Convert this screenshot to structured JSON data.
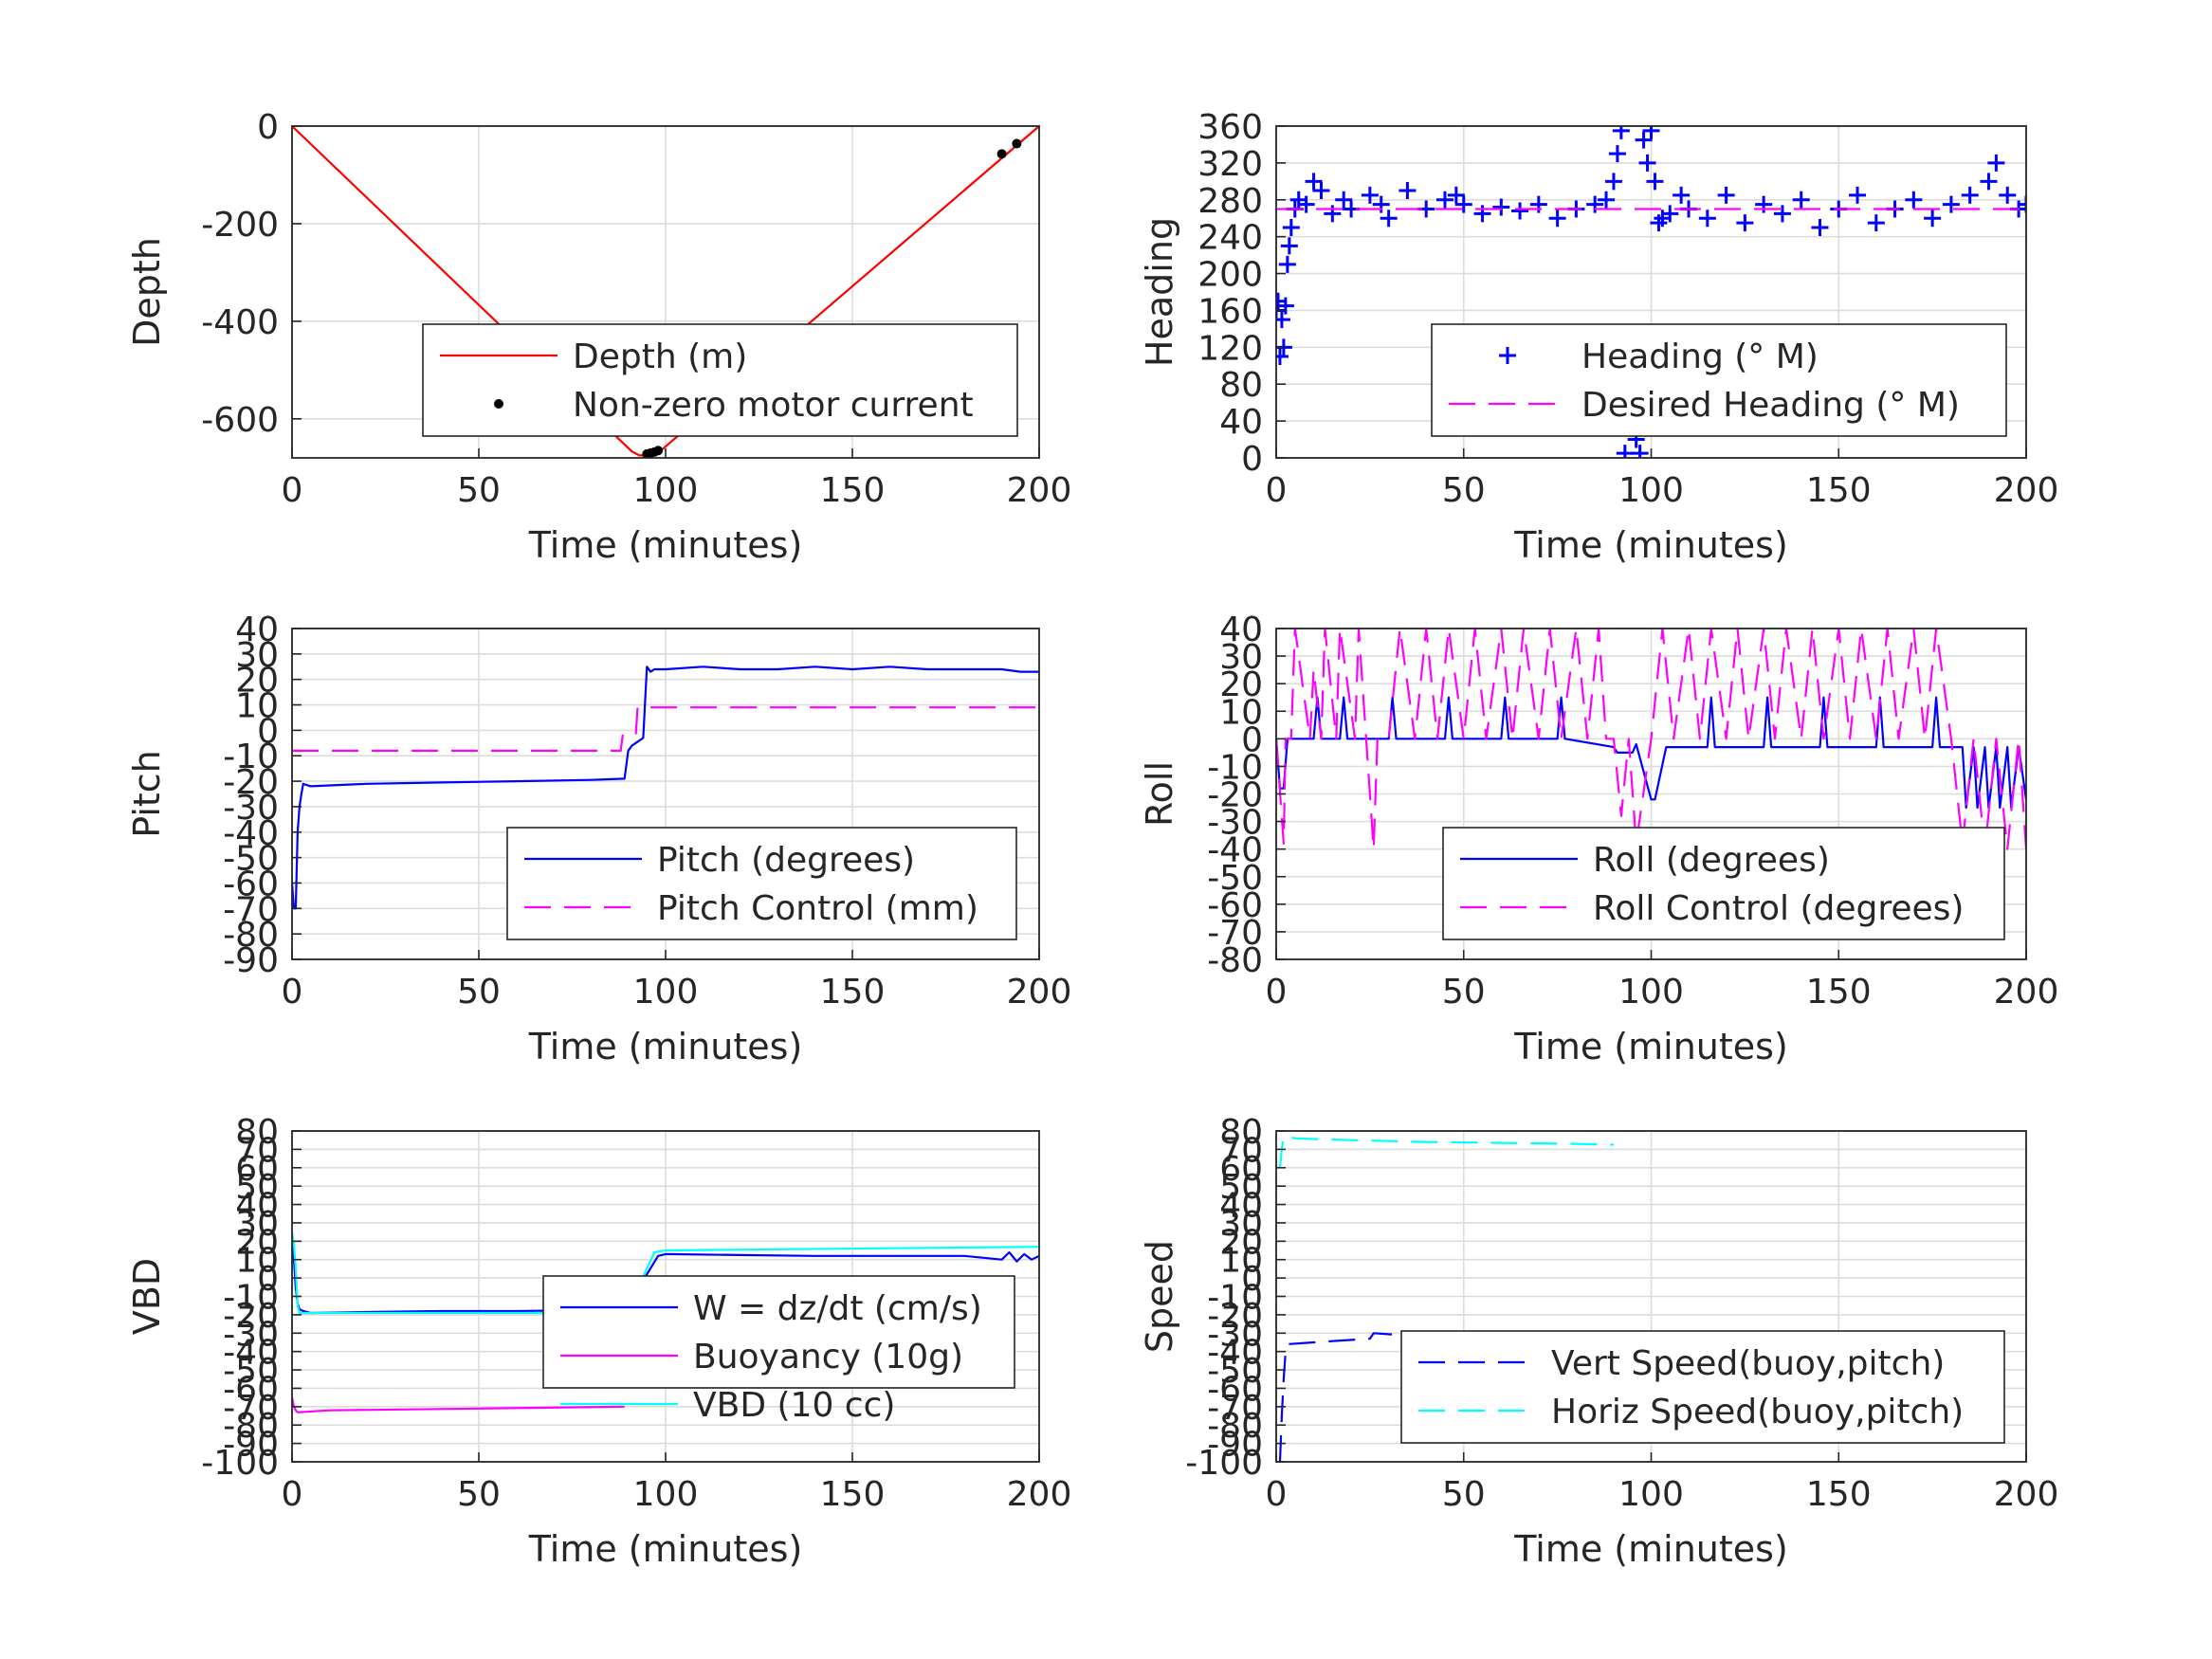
{
  "figure": {
    "background": "#ffffff",
    "grid_color": "#dcdcdc",
    "axis_color": "#262626"
  },
  "chart_data": [
    {
      "id": "depth",
      "type": "line",
      "xlabel": "Time (minutes)",
      "ylabel": "Depth",
      "xlim": [
        0,
        200
      ],
      "ylim": [
        -680,
        0
      ],
      "xticks": [
        0,
        50,
        100,
        150,
        200
      ],
      "yticks": [
        0,
        -200,
        -400,
        -600
      ],
      "grid": true,
      "legend_position": "lower-right",
      "series": [
        {
          "name": "Depth (m)",
          "color": "#ff0000",
          "style": "solid",
          "marker": "none",
          "x": [
            0,
            91,
            93,
            95,
            97,
            99,
            200
          ],
          "y": [
            0,
            -667,
            -675,
            -675,
            -670,
            -663,
            0
          ]
        },
        {
          "name": "Non-zero motor current",
          "color": "#000000",
          "style": "none",
          "marker": "dot",
          "x": [
            95,
            96,
            97,
            98,
            190,
            194
          ],
          "y": [
            -672,
            -670,
            -668,
            -665,
            -57,
            -36
          ]
        }
      ]
    },
    {
      "id": "heading",
      "type": "scatter",
      "xlabel": "Time (minutes)",
      "ylabel": "Heading",
      "xlim": [
        0,
        200
      ],
      "ylim": [
        0,
        360
      ],
      "xticks": [
        0,
        50,
        100,
        150,
        200
      ],
      "yticks": [
        0,
        40,
        80,
        120,
        160,
        200,
        240,
        280,
        320,
        360
      ],
      "grid": true,
      "legend_position": "lower-right",
      "series": [
        {
          "name": "Heading (° M)",
          "color": "#0000ff",
          "style": "none",
          "marker": "plus",
          "x": [
            0,
            0.5,
            1,
            1.5,
            2,
            2.5,
            3,
            3.5,
            4,
            5,
            6,
            8,
            10,
            12,
            15,
            18,
            20,
            25,
            28,
            30,
            35,
            40,
            45,
            48,
            50,
            55,
            60,
            65,
            70,
            75,
            80,
            85,
            88,
            90,
            91,
            92,
            93,
            93.5,
            94,
            94.5,
            95,
            96,
            97,
            98,
            99,
            100,
            101,
            102,
            103,
            105,
            108,
            110,
            115,
            120,
            125,
            130,
            135,
            140,
            145,
            150,
            155,
            160,
            165,
            170,
            175,
            180,
            185,
            190,
            192,
            195,
            198,
            200
          ],
          "y": [
            160,
            170,
            110,
            150,
            120,
            165,
            210,
            230,
            250,
            270,
            280,
            275,
            300,
            290,
            265,
            280,
            270,
            285,
            275,
            260,
            290,
            270,
            280,
            285,
            275,
            265,
            272,
            268,
            275,
            260,
            270,
            275,
            280,
            300,
            330,
            355,
            5,
            45,
            80,
            70,
            60,
            20,
            5,
            345,
            320,
            355,
            300,
            255,
            260,
            265,
            285,
            270,
            260,
            285,
            255,
            275,
            265,
            280,
            250,
            270,
            285,
            255,
            270,
            280,
            260,
            275,
            285,
            300,
            320,
            285,
            270,
            275
          ]
        },
        {
          "name": "Desired Heading (° M)",
          "color": "#ff00ff",
          "style": "dashed",
          "marker": "none",
          "x": [
            0,
            200
          ],
          "y": [
            270,
            270
          ]
        }
      ]
    },
    {
      "id": "pitch",
      "type": "line",
      "xlabel": "Time (minutes)",
      "ylabel": "Pitch",
      "xlim": [
        0,
        200
      ],
      "ylim": [
        -90,
        40
      ],
      "xticks": [
        0,
        50,
        100,
        150,
        200
      ],
      "yticks": [
        40,
        30,
        20,
        10,
        0,
        -10,
        -20,
        -30,
        -40,
        -50,
        -60,
        -70,
        -80,
        -90
      ],
      "grid": true,
      "legend_position": "lower-right",
      "series": [
        {
          "name": "Pitch (degrees)",
          "color": "#0000ff",
          "style": "solid",
          "marker": "none",
          "x": [
            0,
            0.5,
            1,
            1.5,
            2,
            2.5,
            3,
            5,
            20,
            40,
            60,
            80,
            89,
            90,
            91,
            92,
            94,
            95,
            96,
            97,
            100,
            110,
            120,
            130,
            140,
            150,
            160,
            170,
            180,
            190,
            195,
            200
          ],
          "y": [
            -60,
            -70,
            -70,
            -40,
            -30,
            -25,
            -21,
            -22,
            -21,
            -20.5,
            -20,
            -19.5,
            -19,
            -8,
            -6,
            -5,
            -3,
            25,
            23,
            24,
            24,
            25,
            24,
            24,
            25,
            24,
            25,
            24,
            24,
            24,
            23,
            23
          ]
        },
        {
          "name": "Pitch Control (mm)",
          "color": "#ff00ff",
          "style": "dashed",
          "marker": "none",
          "x": [
            0,
            88,
            88.5,
            92,
            92.5,
            200
          ],
          "y": [
            -8,
            -8,
            -2,
            -2,
            9,
            9
          ]
        }
      ]
    },
    {
      "id": "roll",
      "type": "line",
      "xlabel": "Time (minutes)",
      "ylabel": "Roll",
      "xlim": [
        0,
        200
      ],
      "ylim": [
        -80,
        40
      ],
      "xticks": [
        0,
        50,
        100,
        150,
        200
      ],
      "yticks": [
        40,
        30,
        20,
        10,
        0,
        -10,
        -20,
        -30,
        -40,
        -50,
        -60,
        -70,
        -80
      ],
      "grid": true,
      "legend_position": "lower-right",
      "series": [
        {
          "name": "Roll (degrees)",
          "color": "#0000ff",
          "style": "solid",
          "marker": "none",
          "x": [
            0,
            1,
            2,
            3,
            4,
            5,
            10,
            11,
            12,
            17,
            18,
            19,
            30,
            31,
            32,
            45,
            46,
            47,
            60,
            61,
            62,
            75,
            76,
            77,
            90,
            91,
            95,
            96,
            100,
            101,
            104,
            105,
            115,
            116,
            117,
            130,
            131,
            132,
            145,
            146,
            147,
            160,
            161,
            162,
            175,
            176,
            177,
            183,
            184,
            186,
            187,
            189,
            190,
            192,
            193,
            195,
            196,
            198,
            200
          ],
          "y": [
            0,
            -18,
            -18,
            0,
            0,
            0,
            0,
            15,
            0,
            0,
            15,
            0,
            0,
            15,
            0,
            0,
            15,
            0,
            0,
            15,
            0,
            0,
            15,
            0,
            -3,
            -5,
            -5,
            -2,
            -22,
            -22,
            -3,
            -3,
            -3,
            15,
            -3,
            -3,
            15,
            -3,
            -3,
            15,
            -3,
            -3,
            15,
            -3,
            -3,
            15,
            -3,
            -3,
            -25,
            -3,
            -25,
            -3,
            -25,
            -3,
            -25,
            -3,
            -25,
            -3,
            -22
          ]
        },
        {
          "name": "Roll Control (degrees)",
          "color": "#ff00ff",
          "style": "dashed",
          "marker": "none",
          "x": [
            0,
            2,
            2.5,
            4,
            5,
            9,
            10,
            12,
            13,
            16,
            17,
            21,
            22,
            26,
            27,
            30,
            33,
            37,
            40,
            43,
            46,
            50,
            53,
            56,
            60,
            63,
            66,
            70,
            73,
            76,
            80,
            83,
            86,
            88,
            90,
            92,
            94,
            96,
            100,
            103,
            106,
            110,
            113,
            116,
            120,
            123,
            126,
            130,
            133,
            136,
            140,
            143,
            146,
            150,
            153,
            156,
            160,
            163,
            166,
            170,
            173,
            176,
            180,
            183,
            186,
            189,
            192,
            195,
            198,
            200
          ],
          "y": [
            0,
            -38,
            0,
            0,
            40,
            0,
            25,
            0,
            40,
            0,
            40,
            0,
            40,
            -40,
            0,
            0,
            40,
            0,
            40,
            0,
            40,
            0,
            40,
            0,
            40,
            0,
            40,
            0,
            40,
            0,
            40,
            0,
            40,
            0,
            0,
            -28,
            0,
            -38,
            0,
            40,
            0,
            40,
            0,
            40,
            0,
            40,
            0,
            40,
            0,
            40,
            0,
            40,
            0,
            40,
            0,
            40,
            0,
            40,
            0,
            40,
            0,
            40,
            0,
            -38,
            0,
            -40,
            0,
            -40,
            0,
            -40
          ]
        }
      ]
    },
    {
      "id": "vbd",
      "type": "line",
      "xlabel": "Time (minutes)",
      "ylabel": "VBD",
      "xlim": [
        0,
        200
      ],
      "ylim": [
        -100,
        80
      ],
      "xticks": [
        0,
        50,
        100,
        150,
        200
      ],
      "yticks": [
        80,
        70,
        60,
        50,
        40,
        30,
        20,
        10,
        0,
        -10,
        -20,
        -30,
        -40,
        -50,
        -60,
        -70,
        -80,
        -90,
        -100
      ],
      "grid": true,
      "legend_position": "lower-right",
      "series": [
        {
          "name": "W = dz/dt (cm/s)",
          "color": "#0000ff",
          "style": "solid",
          "marker": "none",
          "x": [
            0,
            0.5,
            1,
            1.5,
            2,
            3,
            5,
            20,
            40,
            60,
            80,
            89,
            91,
            95,
            98,
            100,
            120,
            140,
            160,
            180,
            190,
            192,
            194,
            196,
            198,
            200
          ],
          "y": [
            20,
            10,
            -5,
            -14,
            -17,
            -18,
            -19,
            -18.5,
            -18,
            -18,
            -17.5,
            -17,
            -12,
            2,
            12,
            13,
            12.5,
            12,
            12,
            12,
            10,
            14,
            9,
            13,
            10,
            12
          ]
        },
        {
          "name": "Buoyancy (10g)",
          "color": "#ff00ff",
          "style": "solid",
          "marker": "none",
          "x": [
            0,
            0.5,
            1,
            1.5,
            2,
            10,
            50,
            89
          ],
          "y": [
            -65,
            -70,
            -72,
            -73,
            -73,
            -72,
            -71,
            -70
          ]
        },
        {
          "name": "VBD (10 cc)",
          "color": "#00ffff",
          "style": "solid",
          "marker": "none",
          "x": [
            0,
            0.5,
            1,
            1.5,
            2,
            3,
            88,
            90,
            97,
            100,
            200
          ],
          "y": [
            25,
            18,
            5,
            -15,
            -19,
            -19,
            -19,
            -17,
            14,
            15,
            17
          ]
        }
      ]
    },
    {
      "id": "speed",
      "type": "line",
      "xlabel": "Time (minutes)",
      "ylabel": "Speed",
      "xlim": [
        0,
        200
      ],
      "ylim": [
        -100,
        80
      ],
      "xticks": [
        0,
        50,
        100,
        150,
        200
      ],
      "yticks": [
        80,
        70,
        60,
        50,
        40,
        30,
        20,
        10,
        0,
        -10,
        -20,
        -30,
        -40,
        -50,
        -60,
        -70,
        -80,
        -90,
        -100
      ],
      "grid": true,
      "legend_position": "lower-right",
      "series": [
        {
          "name": "Vert Speed(buoy,pitch)",
          "color": "#0000ff",
          "style": "dashed",
          "marker": "none",
          "x": [
            1,
            1.5,
            2,
            2.5,
            3,
            10,
            25,
            26,
            40,
            60,
            80,
            88
          ],
          "y": [
            -100,
            -75,
            -55,
            -40,
            -36,
            -35,
            -33,
            -30,
            -32,
            -31.5,
            -31,
            -30.5
          ]
        },
        {
          "name": "Horiz Speed(buoy,pitch)",
          "color": "#00ffff",
          "style": "dashed",
          "marker": "none",
          "x": [
            1,
            1.5,
            2,
            3,
            5,
            20,
            40,
            60,
            80,
            90
          ],
          "y": [
            60,
            70,
            77,
            77,
            76,
            75,
            74,
            73.5,
            73,
            72.5
          ]
        }
      ]
    }
  ]
}
